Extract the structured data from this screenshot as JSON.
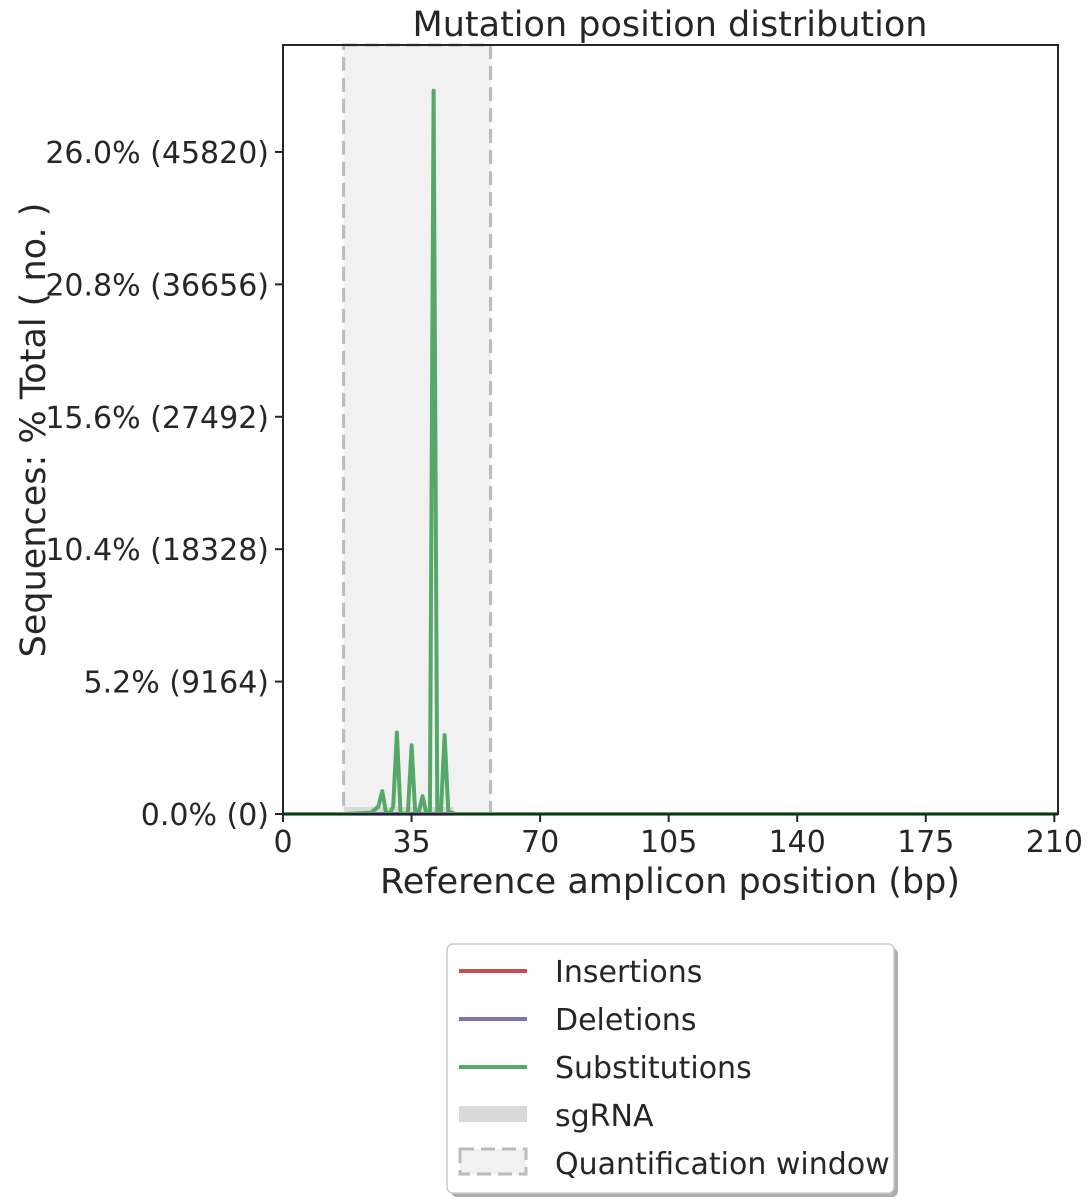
{
  "chart_data": {
    "type": "line",
    "title": "Mutation position distribution",
    "xlabel": "Reference amplicon position (bp)",
    "ylabel": "Sequences: % Total ( no. )",
    "xlim": [
      0,
      211
    ],
    "ylim": [
      0,
      30.2
    ],
    "xticks": [
      0,
      35,
      70,
      105,
      140,
      175,
      210
    ],
    "xtick_labels": [
      "0",
      "35",
      "70",
      "105",
      "140",
      "175",
      "210"
    ],
    "yticks": [
      0,
      5.2,
      10.4,
      15.6,
      20.8,
      26.0
    ],
    "ytick_labels": [
      "0.0% (0)",
      "5.2% (9164)",
      "10.4% (18328)",
      "15.6% (27492)",
      "20.8% (36656)",
      "26.0% (45820)"
    ],
    "quantification_window": [
      16.5,
      56.5
    ],
    "sgrna_range": [
      16.5,
      46.5
    ],
    "series": [
      {
        "name": "Insertions",
        "color": "#c44e52",
        "x": [
          0,
          211
        ],
        "values": [
          0,
          0
        ]
      },
      {
        "name": "Deletions",
        "color": "#8172b2",
        "x": [
          0,
          211
        ],
        "values": [
          0,
          0
        ]
      },
      {
        "name": "Substitutions",
        "color": "#55a868",
        "x": [
          0,
          17,
          24,
          26,
          27,
          28,
          29,
          30,
          31,
          32,
          33,
          34,
          35,
          36,
          37,
          38,
          39,
          40,
          41,
          42,
          43,
          44,
          45,
          46,
          47,
          48,
          211
        ],
        "values": [
          0,
          0,
          0.05,
          0.3,
          0.9,
          0.1,
          0,
          0.3,
          3.2,
          0.05,
          0,
          0.05,
          2.7,
          0.05,
          0.1,
          0.7,
          0.05,
          0,
          28.4,
          0.1,
          0.05,
          3.1,
          0.1,
          0.05,
          0,
          0,
          0
        ]
      }
    ],
    "legend": {
      "position": "bottom-center",
      "entries": [
        {
          "label": "Insertions",
          "style": "line",
          "color": "#c44e52"
        },
        {
          "label": "Deletions",
          "style": "line",
          "color": "#8172b2"
        },
        {
          "label": "Substitutions",
          "style": "line",
          "color": "#55a868"
        },
        {
          "label": "sgRNA",
          "style": "band",
          "color": "#d9d9d9"
        },
        {
          "label": "Quantification window",
          "style": "dashed-box",
          "color": "#bbbbbb"
        }
      ]
    }
  }
}
